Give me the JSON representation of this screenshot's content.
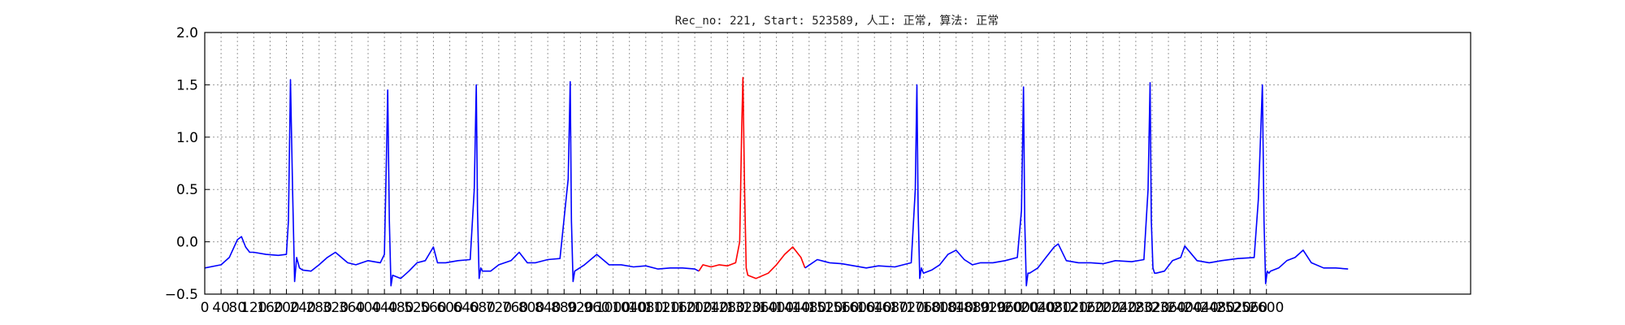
{
  "chart_data": {
    "type": "line",
    "title": "Rec_no: 221, Start: 523589, 人工: 正常, 算法: 正常",
    "xlabel": "",
    "ylabel": "",
    "xlim": [
      0,
      3100
    ],
    "ylim": [
      -0.5,
      2.0
    ],
    "yticks": [
      -0.5,
      0.0,
      0.5,
      1.0,
      1.5,
      2.0
    ],
    "ytick_labels": [
      "−0.5",
      "0.0",
      "0.5",
      "1.0",
      "1.5",
      "2.0"
    ],
    "xticks": [
      0,
      40,
      80,
      120,
      160,
      200,
      240,
      280,
      320,
      360,
      400,
      440,
      480,
      520,
      560,
      600,
      640,
      680,
      720,
      760,
      800,
      840,
      880,
      920,
      960,
      1000,
      1040,
      1080,
      1120,
      1160,
      1200,
      1240,
      1280,
      1320,
      1360,
      1400,
      1440,
      1480,
      1520,
      1560,
      1600,
      1640,
      1680,
      1720,
      1760,
      1800,
      1840,
      1880,
      1920,
      1960,
      2000,
      2040,
      2080,
      2120,
      2160,
      2200,
      2240,
      2280,
      2320,
      2360,
      2400,
      2440,
      2480,
      2520,
      2560,
      2600
    ],
    "xtick_labels": [
      "0",
      "40",
      "80",
      "120",
      "160",
      "200",
      "240",
      "280",
      "320",
      "360",
      "400",
      "440",
      "480",
      "520",
      "560",
      "600",
      "640",
      "680",
      "720",
      "760",
      "800",
      "840",
      "880",
      "920",
      "960",
      "1000",
      "1040",
      "1080",
      "1120",
      "1160",
      "1200",
      "1240",
      "1280",
      "1320",
      "1360",
      "1400",
      "1440",
      "1480",
      "1520",
      "1560",
      "1600",
      "1640",
      "1680",
      "1720",
      "1760",
      "1800",
      "1840",
      "1880",
      "1920",
      "1960",
      "2000",
      "2040",
      "2080",
      "2120",
      "2160",
      "2200",
      "2240",
      "2280",
      "2320",
      "2360",
      "2400",
      "2440",
      "2480",
      "2520",
      "2560",
      "2600"
    ],
    "grid": true,
    "series": [
      {
        "color": "#0000ff",
        "x": [
          0,
          40,
          60,
          80,
          90,
          100,
          110,
          120,
          150,
          180,
          200,
          205,
          210,
          215,
          220,
          225,
          232,
          240,
          260,
          280,
          300,
          320,
          350,
          370,
          400,
          430,
          440,
          445,
          448,
          452,
          456,
          460,
          480,
          500,
          520,
          540,
          560,
          570,
          590,
          620,
          650,
          660,
          665,
          668,
          672,
          676,
          680,
          700,
          720,
          750,
          770,
          790,
          810,
          840,
          870,
          890,
          895,
          898,
          902,
          906,
          910,
          930,
          960,
          990,
          1020,
          1050,
          1080,
          1110,
          1140,
          1170,
          1200,
          1210
        ],
        "y": [
          -0.25,
          -0.22,
          -0.15,
          0.02,
          0.05,
          -0.05,
          -0.1,
          -0.1,
          -0.12,
          -0.13,
          -0.12,
          0.2,
          1.55,
          0.5,
          -0.38,
          -0.15,
          -0.25,
          -0.27,
          -0.28,
          -0.22,
          -0.15,
          -0.1,
          -0.2,
          -0.22,
          -0.18,
          -0.2,
          -0.12,
          0.8,
          1.45,
          0.2,
          -0.42,
          -0.32,
          -0.35,
          -0.28,
          -0.2,
          -0.18,
          -0.05,
          -0.2,
          -0.2,
          -0.18,
          -0.17,
          0.5,
          1.5,
          0.3,
          -0.35,
          -0.25,
          -0.28,
          -0.28,
          -0.22,
          -0.18,
          -0.1,
          -0.2,
          -0.2,
          -0.17,
          -0.16,
          0.6,
          1.53,
          0.2,
          -0.38,
          -0.28,
          -0.27,
          -0.22,
          -0.12,
          -0.22,
          -0.22,
          -0.24,
          -0.23,
          -0.26,
          -0.25,
          -0.25,
          -0.26,
          -0.28
        ]
      },
      {
        "color": "#ff0000",
        "x": [
          1210,
          1220,
          1240,
          1260,
          1280,
          1300,
          1310,
          1315,
          1318,
          1322,
          1326,
          1330,
          1350,
          1380,
          1400,
          1420,
          1440,
          1460,
          1470
        ],
        "y": [
          -0.28,
          -0.22,
          -0.24,
          -0.22,
          -0.23,
          -0.2,
          0.0,
          1.1,
          1.57,
          0.5,
          -0.25,
          -0.32,
          -0.35,
          -0.3,
          -0.22,
          -0.12,
          -0.05,
          -0.15,
          -0.25
        ]
      },
      {
        "color": "#0000ff",
        "x": [
          1470,
          1500,
          1530,
          1560,
          1590,
          1620,
          1650,
          1690,
          1730,
          1740,
          1744,
          1747,
          1751,
          1755,
          1760,
          1780,
          1800,
          1820,
          1840,
          1860,
          1880,
          1900,
          1930,
          1960,
          1990,
          2000,
          2005,
          2008,
          2012,
          2016,
          2020,
          2040,
          2060,
          2080,
          2090,
          2110,
          2140,
          2170,
          2200,
          2230,
          2270,
          2300,
          2310,
          2315,
          2318,
          2322,
          2326,
          2330,
          2350,
          2370,
          2390,
          2400,
          2430,
          2460,
          2490,
          2530,
          2570,
          2580,
          2590,
          2594,
          2598,
          2602,
          2606,
          2610,
          2630,
          2650,
          2670,
          2690,
          2710,
          2740,
          2770,
          2800
        ],
        "y": [
          -0.25,
          -0.17,
          -0.2,
          -0.21,
          -0.23,
          -0.25,
          -0.23,
          -0.24,
          -0.2,
          0.5,
          1.5,
          0.3,
          -0.35,
          -0.25,
          -0.3,
          -0.27,
          -0.22,
          -0.12,
          -0.08,
          -0.17,
          -0.22,
          -0.2,
          -0.2,
          -0.18,
          -0.15,
          0.3,
          1.48,
          0.2,
          -0.42,
          -0.3,
          -0.3,
          -0.25,
          -0.15,
          -0.05,
          -0.02,
          -0.18,
          -0.2,
          -0.2,
          -0.21,
          -0.18,
          -0.19,
          -0.17,
          0.5,
          1.52,
          0.2,
          -0.25,
          -0.3,
          -0.3,
          -0.28,
          -0.18,
          -0.15,
          -0.04,
          -0.18,
          -0.2,
          -0.18,
          -0.16,
          -0.15,
          0.4,
          1.5,
          0.2,
          -0.4,
          -0.28,
          -0.3,
          -0.28,
          -0.25,
          -0.18,
          -0.15,
          -0.08,
          -0.2,
          -0.25,
          -0.25,
          -0.26
        ]
      }
    ]
  }
}
